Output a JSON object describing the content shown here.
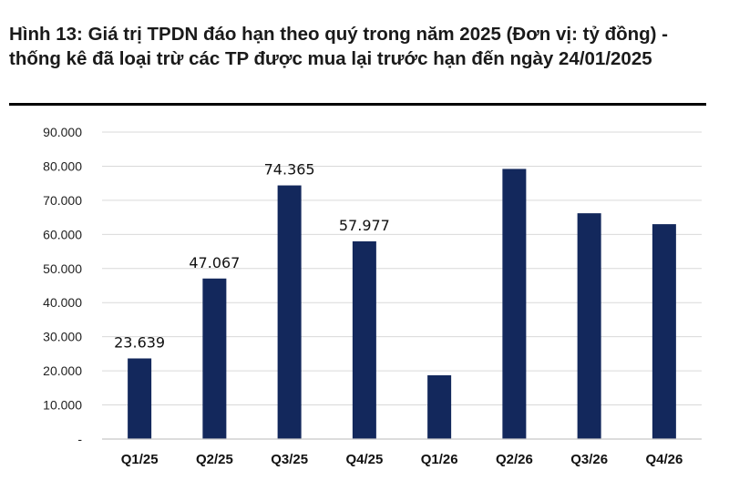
{
  "title": "Hình 13: Giá trị TPDN đáo hạn theo quý trong năm 2025 (Đơn vị: tỷ đồng) - thống kê đã loại trừ các TP được mua lại trước hạn đến ngày 24/01/2025",
  "colors": {
    "bar": "#13285c",
    "grid": "#d9d9d9",
    "axis": "#c8c8c8",
    "rule": "#000000"
  },
  "chart_data": {
    "type": "bar",
    "title": "Hình 13: Giá trị TPDN đáo hạn theo quý trong năm 2025 (Đơn vị: tỷ đồng) - thống kê đã loại trừ các TP được mua lại trước hạn đến ngày 24/01/2025",
    "xlabel": "",
    "ylabel": "",
    "categories": [
      "Q1/25",
      "Q2/25",
      "Q3/25",
      "Q4/25",
      "Q1/26",
      "Q2/26",
      "Q3/26",
      "Q4/26"
    ],
    "values": [
      23639,
      47067,
      74365,
      57977,
      18700,
      79200,
      66200,
      63000
    ],
    "data_labels": [
      "23.639",
      "47.067",
      "74.365",
      "57.977",
      "",
      "",
      "",
      ""
    ],
    "ylim": [
      0,
      90000
    ],
    "yticks": [
      0,
      10000,
      20000,
      30000,
      40000,
      50000,
      60000,
      70000,
      80000,
      90000
    ],
    "ytick_labels": [
      "-",
      "10.000",
      "20.000",
      "30.000",
      "40.000",
      "50.000",
      "60.000",
      "70.000",
      "80.000",
      "90.000"
    ],
    "grid": true,
    "legend": "none"
  }
}
